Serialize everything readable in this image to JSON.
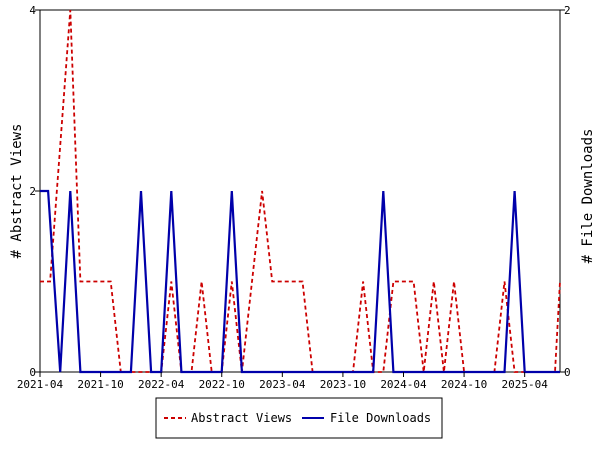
{
  "chart_data": {
    "type": "line",
    "ylabel_left": "# Abstract Views",
    "ylabel_right": "# File Downloads",
    "x_tick_labels": [
      "2021-04",
      "2021-10",
      "2022-04",
      "2022-10",
      "2023-04",
      "2023-10",
      "2024-04",
      "2024-10",
      "2025-04"
    ],
    "x_tick_months": [
      0,
      6,
      12,
      18,
      24,
      30,
      36,
      42,
      48
    ],
    "x_range_months": [
      0,
      51.5
    ],
    "ylim_left": [
      0,
      4
    ],
    "yticks_left": [
      "0",
      "2",
      "4"
    ],
    "ylim_right": [
      0,
      2
    ],
    "yticks_right": [
      "0",
      "2"
    ],
    "grid": false,
    "legend_placement": "bottom-center",
    "series": [
      {
        "name": "Abstract Views",
        "axis": "left",
        "color": "#cc0000",
        "dash": true,
        "x": [
          0,
          1,
          3,
          4,
          6,
          7,
          8,
          9,
          10,
          11,
          12,
          13,
          14,
          15,
          16,
          17,
          18,
          19,
          20,
          21,
          22,
          23,
          24,
          25,
          26,
          27,
          28,
          29,
          30,
          31,
          32,
          33,
          34,
          35,
          36,
          37,
          38,
          39,
          40,
          41,
          42,
          43,
          44,
          45,
          46,
          47,
          48,
          49,
          50,
          51,
          51.5
        ],
        "y": [
          1,
          1,
          4,
          1,
          1,
          1,
          0,
          0,
          0,
          0,
          0,
          1,
          0,
          0,
          1,
          0,
          0,
          1,
          0,
          1,
          2,
          1,
          1,
          1,
          1,
          0,
          0,
          0,
          0,
          0,
          1,
          0,
          0,
          1,
          1,
          1,
          0,
          1,
          0,
          1,
          0,
          0,
          0,
          0,
          1,
          0,
          0,
          0,
          0,
          0,
          1
        ]
      },
      {
        "name": "File Downloads",
        "axis": "right",
        "color": "#0000aa",
        "dash": false,
        "x": [
          0,
          0.8,
          2,
          3,
          4,
          5,
          6,
          7,
          8,
          9,
          10,
          11,
          12,
          13,
          14,
          15,
          16,
          17,
          18,
          19,
          20,
          21,
          22,
          23,
          24,
          25,
          26,
          27,
          28,
          29,
          30,
          31,
          32,
          33,
          34,
          35,
          36,
          37,
          38,
          39,
          40,
          41,
          42,
          43,
          44,
          45,
          46,
          47,
          48,
          49,
          50,
          51,
          51.5
        ],
        "y": [
          1,
          1,
          0,
          1,
          0,
          0,
          0,
          0,
          0,
          0,
          1,
          0,
          0,
          1,
          0,
          0,
          0,
          0,
          0,
          1,
          0,
          0,
          0,
          0,
          0,
          0,
          0,
          0,
          0,
          0,
          0,
          0,
          0,
          0,
          1,
          0,
          0,
          0,
          0,
          0,
          0,
          0,
          0,
          0,
          0,
          0,
          0,
          1,
          0,
          0,
          0,
          0,
          0
        ]
      }
    ]
  }
}
